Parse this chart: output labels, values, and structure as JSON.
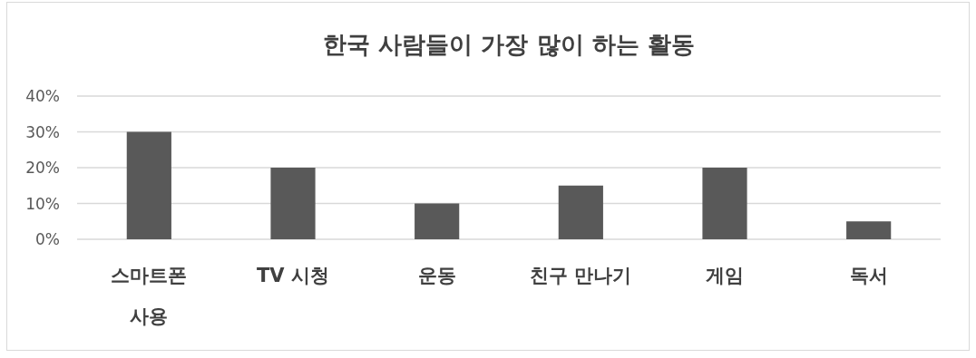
{
  "chart_data": {
    "type": "bar",
    "title": "한국 사람들이 가장 많이 하는 활동",
    "categories": [
      "스마트폰 사용",
      "TV 시청",
      "운동",
      "친구 만나기",
      "게임",
      "독서"
    ],
    "values": [
      30,
      20,
      10,
      15,
      20,
      5
    ],
    "color": "#595959",
    "ylim": [
      0,
      40
    ],
    "yticks": [
      {
        "value": 0,
        "label": "0%"
      },
      {
        "value": 10,
        "label": "10%"
      },
      {
        "value": 20,
        "label": "20%"
      },
      {
        "value": 30,
        "label": "30%"
      },
      {
        "value": 40,
        "label": "40%"
      }
    ],
    "grid": "y"
  }
}
